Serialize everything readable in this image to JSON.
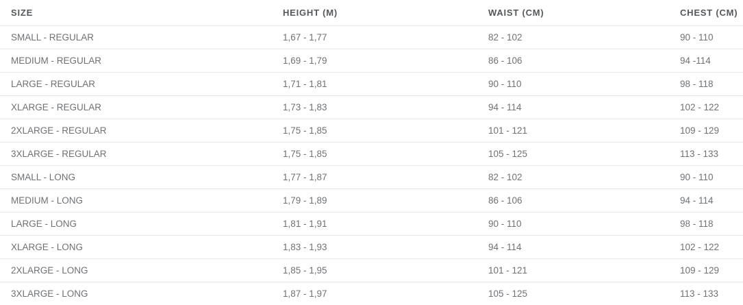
{
  "table": {
    "name": "size-chart",
    "columns": [
      {
        "label": "SIZE"
      },
      {
        "label": "HEIGHT (M)"
      },
      {
        "label": "WAIST (CM)"
      },
      {
        "label": "CHEST (CM)"
      }
    ],
    "rows": [
      {
        "size": "SMALL - REGULAR",
        "height": "1,67 - 1,77",
        "waist": "82 - 102",
        "chest": "90 - 110"
      },
      {
        "size": "MEDIUM - REGULAR",
        "height": "1,69 - 1,79",
        "waist": "86 - 106",
        "chest": "94 -114"
      },
      {
        "size": "LARGE - REGULAR",
        "height": "1,71 - 1,81",
        "waist": "90 - 110",
        "chest": "98 - 118"
      },
      {
        "size": "XLARGE - REGULAR",
        "height": "1,73 - 1,83",
        "waist": "94 - 114",
        "chest": "102 - 122"
      },
      {
        "size": "2XLARGE - REGULAR",
        "height": "1,75 - 1,85",
        "waist": "101 - 121",
        "chest": "109 - 129"
      },
      {
        "size": "3XLARGE - REGULAR",
        "height": "1,75 - 1,85",
        "waist": "105 - 125",
        "chest": "113 - 133"
      },
      {
        "size": "SMALL - LONG",
        "height": "1,77 - 1,87",
        "waist": "82 - 102",
        "chest": "90 - 110"
      },
      {
        "size": "MEDIUM - LONG",
        "height": "1,79 - 1,89",
        "waist": "86 - 106",
        "chest": "94 - 114"
      },
      {
        "size": "LARGE - LONG",
        "height": "1,81 - 1,91",
        "waist": "90 - 110",
        "chest": "98 - 118"
      },
      {
        "size": "XLARGE - LONG",
        "height": "1,83 - 1,93",
        "waist": "94 - 114",
        "chest": "102 - 122"
      },
      {
        "size": "2XLARGE - LONG",
        "height": "1,85 - 1,95",
        "waist": "101 - 121",
        "chest": "109 - 129"
      },
      {
        "size": "3XLARGE - LONG",
        "height": "1,87 - 1,97",
        "waist": "105 - 125",
        "chest": "113 - 133"
      }
    ]
  },
  "colors": {
    "header_text": "#54585b",
    "body_text": "#6e7174",
    "divider": "#e7e7e7",
    "background": "#ffffff"
  }
}
